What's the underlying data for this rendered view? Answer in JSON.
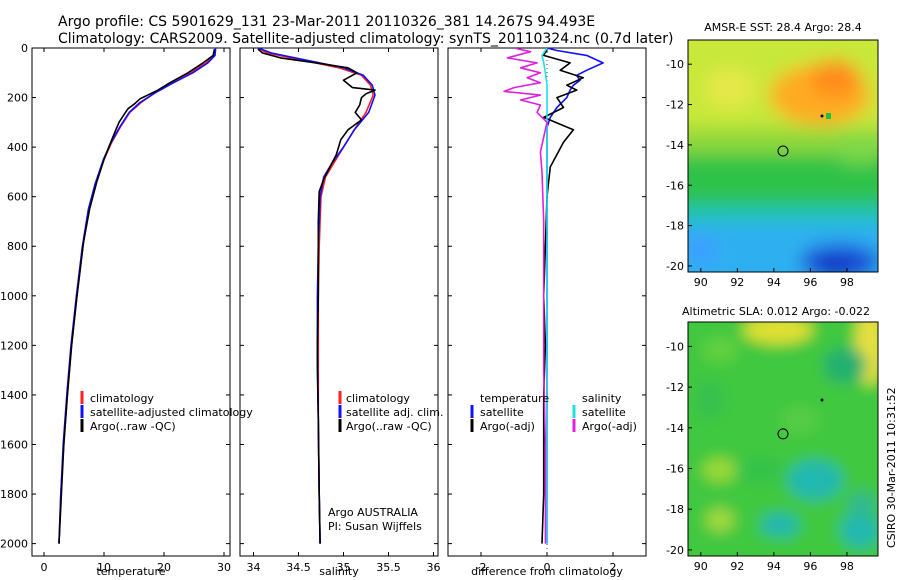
{
  "title_line1": "Argo profile: CS 5901629_131 23-Mar-2011 20110326_381 14.267S 94.493E",
  "title_line2": "Climatology: CARS2009. Satellite-adjusted climatology: synTS_20110324.nc (0.7d later)",
  "vertical_stamp": "CSIRO 30-Mar-2011 10:31:52",
  "colors": {
    "red": "#ff2020",
    "blue": "#1010ff",
    "black": "#000000",
    "cyan": "#20e0e0",
    "magenta": "#e020e0"
  },
  "chart_data": [
    {
      "type": "line",
      "xlabel": "temperature",
      "xlim": [
        -2,
        31
      ],
      "ylim": [
        2050,
        0
      ],
      "xticks": [
        "0",
        "10",
        "20",
        "30"
      ],
      "yticks": [
        "0",
        "200",
        "400",
        "600",
        "800",
        "1000",
        "1200",
        "1400",
        "1600",
        "1800",
        "2000"
      ],
      "legend": [
        "climatology",
        "satellite-adjusted climatology",
        "Argo(..raw -QC)"
      ],
      "series": [
        {
          "name": "climatology",
          "color": "red",
          "points": [
            [
              28.6,
              0
            ],
            [
              28.3,
              30
            ],
            [
              27.0,
              60
            ],
            [
              24.5,
              100
            ],
            [
              21.5,
              140
            ],
            [
              18.5,
              180
            ],
            [
              16.2,
              220
            ],
            [
              14.3,
              260
            ],
            [
              12.7,
              320
            ],
            [
              11.3,
              380
            ],
            [
              10.0,
              450
            ],
            [
              8.6,
              550
            ],
            [
              7.5,
              650
            ],
            [
              6.5,
              800
            ],
            [
              5.5,
              1000
            ],
            [
              4.6,
              1200
            ],
            [
              3.9,
              1400
            ],
            [
              3.3,
              1600
            ],
            [
              2.8,
              1800
            ],
            [
              2.5,
              2000
            ]
          ]
        },
        {
          "name": "satellite-adjusted climatology",
          "color": "blue",
          "points": [
            [
              28.6,
              0
            ],
            [
              28.5,
              30
            ],
            [
              27.3,
              60
            ],
            [
              24.8,
              100
            ],
            [
              21.6,
              140
            ],
            [
              18.6,
              180
            ],
            [
              16.0,
              220
            ],
            [
              14.2,
              260
            ],
            [
              12.6,
              320
            ],
            [
              11.2,
              380
            ],
            [
              9.9,
              450
            ],
            [
              8.5,
              550
            ],
            [
              7.4,
              650
            ],
            [
              6.4,
              800
            ],
            [
              5.4,
              1000
            ],
            [
              4.5,
              1200
            ],
            [
              3.8,
              1400
            ],
            [
              3.2,
              1600
            ],
            [
              2.8,
              1800
            ],
            [
              2.5,
              2000
            ]
          ]
        },
        {
          "name": "Argo(..raw -QC)",
          "color": "black",
          "points": [
            [
              28.4,
              5
            ],
            [
              28.2,
              30
            ],
            [
              26.5,
              60
            ],
            [
              24.0,
              100
            ],
            [
              21.0,
              140
            ],
            [
              19.0,
              170
            ],
            [
              16.0,
              205
            ],
            [
              15.1,
              225
            ],
            [
              14.0,
              245
            ],
            [
              13.3,
              270
            ],
            [
              12.5,
              300
            ],
            [
              11.8,
              340
            ],
            [
              10.8,
              400
            ],
            [
              10.0,
              450
            ],
            [
              8.8,
              540
            ],
            [
              7.6,
              650
            ],
            [
              6.6,
              780
            ],
            [
              5.5,
              1000
            ],
            [
              4.6,
              1200
            ],
            [
              3.9,
              1400
            ],
            [
              3.3,
              1600
            ],
            [
              2.9,
              1800
            ],
            [
              2.5,
              2000
            ]
          ]
        }
      ]
    },
    {
      "type": "line",
      "xlabel": "salinity",
      "xlim": [
        33.85,
        36.05
      ],
      "ylim": [
        2050,
        0
      ],
      "xticks": [
        "34",
        "34.5",
        "35",
        "35.5",
        "36"
      ],
      "legend": [
        "climatology",
        "satellite adj. clim.",
        "Argo(..raw -QC)"
      ],
      "annotation": [
        "Argo AUSTRALIA",
        "PI: Susan Wijffels"
      ],
      "series": [
        {
          "name": "climatology",
          "color": "red",
          "points": [
            [
              34.05,
              0
            ],
            [
              34.15,
              20
            ],
            [
              34.55,
              50
            ],
            [
              34.95,
              80
            ],
            [
              35.2,
              110
            ],
            [
              35.3,
              150
            ],
            [
              35.33,
              190
            ],
            [
              35.25,
              260
            ],
            [
              35.12,
              330
            ],
            [
              35.0,
              400
            ],
            [
              34.9,
              460
            ],
            [
              34.8,
              520
            ],
            [
              34.75,
              600
            ],
            [
              34.73,
              800
            ],
            [
              34.72,
              1000
            ],
            [
              34.72,
              1200
            ],
            [
              34.72,
              1500
            ],
            [
              34.73,
              1800
            ],
            [
              34.74,
              2000
            ]
          ]
        },
        {
          "name": "satellite adj. clim.",
          "color": "blue",
          "points": [
            [
              34.05,
              0
            ],
            [
              34.2,
              20
            ],
            [
              34.6,
              50
            ],
            [
              35.0,
              80
            ],
            [
              35.22,
              110
            ],
            [
              35.32,
              150
            ],
            [
              35.35,
              190
            ],
            [
              35.28,
              260
            ],
            [
              35.12,
              330
            ],
            [
              35.0,
              400
            ],
            [
              34.88,
              460
            ],
            [
              34.78,
              520
            ],
            [
              34.74,
              600
            ],
            [
              34.72,
              800
            ],
            [
              34.71,
              1000
            ],
            [
              34.71,
              1200
            ],
            [
              34.72,
              1500
            ],
            [
              34.73,
              1800
            ],
            [
              34.74,
              2000
            ]
          ]
        },
        {
          "name": "Argo(..raw -QC)",
          "color": "black",
          "points": [
            [
              34.05,
              5
            ],
            [
              34.1,
              20
            ],
            [
              34.3,
              40
            ],
            [
              34.7,
              60
            ],
            [
              35.05,
              80
            ],
            [
              35.15,
              100
            ],
            [
              35.0,
              130
            ],
            [
              35.1,
              160
            ],
            [
              35.35,
              170
            ],
            [
              35.25,
              185
            ],
            [
              35.2,
              200
            ],
            [
              35.18,
              230
            ],
            [
              35.13,
              260
            ],
            [
              35.2,
              290
            ],
            [
              35.05,
              330
            ],
            [
              34.97,
              370
            ],
            [
              34.92,
              430
            ],
            [
              34.85,
              480
            ],
            [
              34.78,
              530
            ],
            [
              34.73,
              580
            ],
            [
              34.72,
              700
            ],
            [
              34.72,
              1000
            ],
            [
              34.71,
              1200
            ],
            [
              34.71,
              1300
            ],
            [
              34.72,
              1500
            ],
            [
              34.73,
              1800
            ],
            [
              34.74,
              2000
            ]
          ]
        }
      ]
    },
    {
      "type": "line",
      "xlabel": "difference from climatology",
      "xlim": [
        -3.0,
        3.0
      ],
      "ylim": [
        2050,
        0
      ],
      "xticks": [
        "-2",
        "0",
        "2"
      ],
      "legend_left_title": "temperature",
      "legend_right_title": "salinity",
      "legend_left": [
        "satellite",
        "Argo(-adj)"
      ],
      "legend_right": [
        "satellite",
        "Argo(-adj)"
      ],
      "series": [
        {
          "name": "temperature satellite",
          "color": "blue",
          "points": [
            [
              0,
              0
            ],
            [
              0.3,
              10
            ],
            [
              1.2,
              30
            ],
            [
              1.7,
              60
            ],
            [
              1.2,
              90
            ],
            [
              0.9,
              110
            ],
            [
              1.0,
              130
            ],
            [
              0.8,
              150
            ],
            [
              0.7,
              170
            ],
            [
              0.6,
              200
            ],
            [
              0.3,
              240
            ],
            [
              0.1,
              280
            ],
            [
              0.0,
              320
            ],
            [
              0.0,
              500
            ],
            [
              0.0,
              1000
            ],
            [
              0.0,
              1500
            ],
            [
              0.0,
              2000
            ]
          ]
        },
        {
          "name": "temperature Argo(-adj)",
          "color": "black",
          "points": [
            [
              0,
              5
            ],
            [
              -0.1,
              30
            ],
            [
              0.7,
              60
            ],
            [
              0.4,
              90
            ],
            [
              1.1,
              120
            ],
            [
              0.6,
              150
            ],
            [
              0.9,
              170
            ],
            [
              0.3,
              200
            ],
            [
              0.5,
              240
            ],
            [
              -0.1,
              280
            ],
            [
              0.8,
              330
            ],
            [
              0.5,
              380
            ],
            [
              0.3,
              430
            ],
            [
              0.1,
              480
            ],
            [
              0.05,
              540
            ],
            [
              0.0,
              600
            ],
            [
              -0.05,
              800
            ],
            [
              -0.1,
              1000
            ],
            [
              -0.05,
              1200
            ],
            [
              -0.1,
              1400
            ],
            [
              -0.1,
              1600
            ],
            [
              -0.1,
              1800
            ],
            [
              -0.15,
              2000
            ]
          ]
        },
        {
          "name": "salinity satellite",
          "color": "cyan",
          "points": [
            [
              0,
              0
            ],
            [
              -0.15,
              30
            ],
            [
              -0.1,
              60
            ],
            [
              -0.05,
              100
            ],
            [
              0.0,
              150
            ],
            [
              0.0,
              200
            ],
            [
              0.0,
              400
            ],
            [
              0.0,
              700
            ],
            [
              0.0,
              1000
            ],
            [
              0.0,
              1500
            ],
            [
              0.0,
              2000
            ]
          ]
        },
        {
          "name": "salinity Argo(-adj)",
          "color": "magenta",
          "points": [
            [
              -1.0,
              0
            ],
            [
              -0.5,
              15
            ],
            [
              -1.2,
              40
            ],
            [
              -0.3,
              60
            ],
            [
              -0.8,
              80
            ],
            [
              -0.2,
              100
            ],
            [
              -0.6,
              120
            ],
            [
              -0.2,
              140
            ],
            [
              -1.0,
              160
            ],
            [
              -1.3,
              175
            ],
            [
              -0.2,
              190
            ],
            [
              -0.8,
              210
            ],
            [
              -0.2,
              230
            ],
            [
              -0.3,
              260
            ],
            [
              0.0,
              300
            ],
            [
              -0.1,
              360
            ],
            [
              -0.2,
              420
            ],
            [
              -0.15,
              500
            ],
            [
              -0.1,
              700
            ],
            [
              -0.1,
              1000
            ],
            [
              -0.1,
              1300
            ],
            [
              -0.05,
              1600
            ],
            [
              -0.05,
              2000
            ]
          ]
        }
      ]
    },
    {
      "type": "heatmap",
      "title": "AMSR-E SST: 28.4  Argo: 28.4",
      "xlim": [
        89.3,
        99.7
      ],
      "ylim": [
        -20.3,
        -8.8
      ],
      "xticks": [
        "90",
        "92",
        "94",
        "96",
        "98"
      ],
      "yticks": [
        "-10",
        "-12",
        "-14",
        "-16",
        "-18",
        "-20"
      ],
      "marker": [
        94.5,
        -14.3
      ]
    },
    {
      "type": "heatmap",
      "title": "Altimetric SLA: 0.012  Argo: -0.022",
      "xlim": [
        89.3,
        99.7
      ],
      "ylim": [
        -20.3,
        -8.8
      ],
      "xticks": [
        "90",
        "92",
        "94",
        "96",
        "98"
      ],
      "yticks": [
        "-10",
        "-12",
        "-14",
        "-16",
        "-18",
        "-20"
      ],
      "marker": [
        94.5,
        -14.3
      ]
    }
  ]
}
